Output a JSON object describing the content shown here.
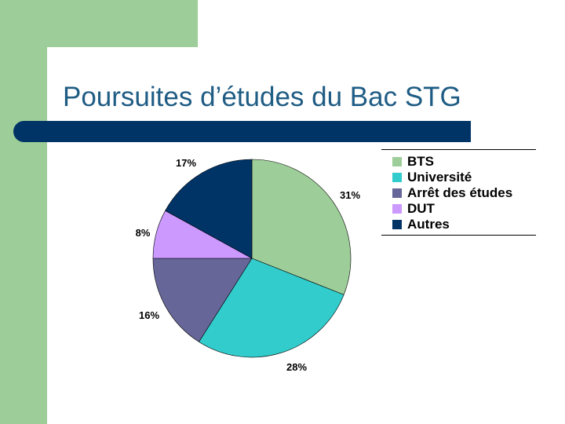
{
  "slide": {
    "title": "Poursuites d’études du Bac STG",
    "colors": {
      "decoration_green": "#9dcd98",
      "title_text": "#1f5c84",
      "rule_bar": "#003366"
    }
  },
  "chart_data": {
    "type": "pie",
    "slices": [
      {
        "name": "BTS",
        "value": 31,
        "label": "31%",
        "color": "#9dcd98"
      },
      {
        "name": "Université",
        "value": 28,
        "label": "28%",
        "color": "#33cccc"
      },
      {
        "name": "Arrêt des études",
        "value": 16,
        "label": "16%",
        "color": "#666699"
      },
      {
        "name": "DUT",
        "value": 8,
        "label": "8%",
        "color": "#cc99ff"
      },
      {
        "name": "Autres",
        "value": 17,
        "label": "17%",
        "color": "#003366"
      }
    ],
    "start_angle_deg": 0,
    "direction": "clockwise",
    "legend_position": "right"
  }
}
